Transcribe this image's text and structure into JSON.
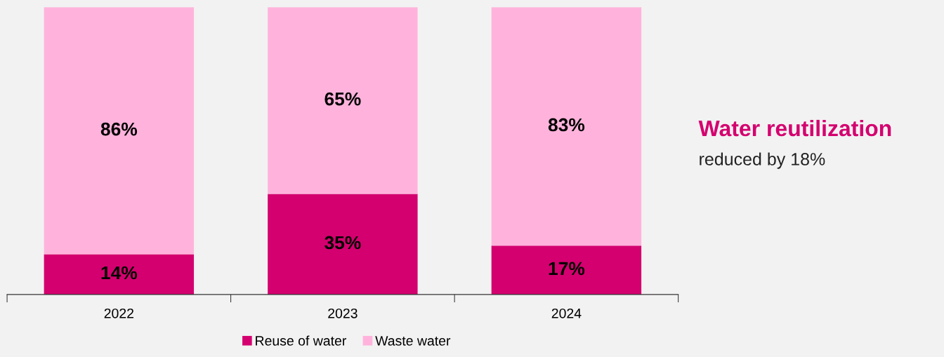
{
  "chart_data": {
    "type": "bar",
    "stacked": true,
    "categories": [
      "2022",
      "2023",
      "2024"
    ],
    "series": [
      {
        "name": "Reuse of water",
        "color": "#d4006f",
        "values": [
          14,
          35,
          17
        ],
        "value_labels": [
          "14%",
          "35%",
          "17%"
        ]
      },
      {
        "name": "Waste water",
        "color": "#ffb3dc",
        "values": [
          86,
          65,
          83
        ],
        "value_labels": [
          "86%",
          "65%",
          "83%"
        ]
      }
    ],
    "tick_labels": "x",
    "legend": "bottom",
    "annotations": [
      "Water reutilization",
      "reduced by 18%"
    ]
  }
}
